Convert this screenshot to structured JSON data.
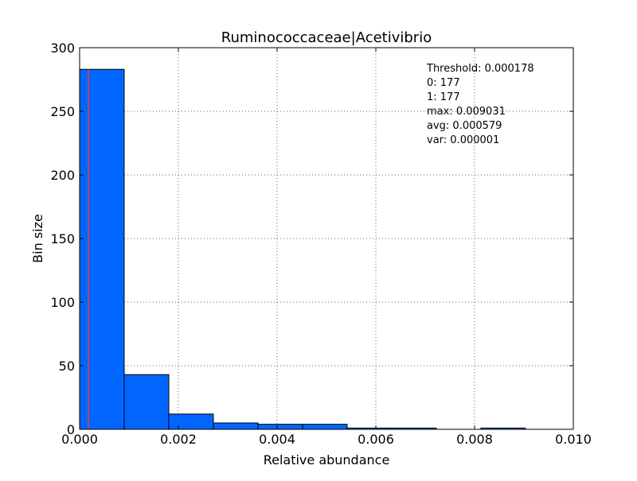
{
  "chart_data": {
    "type": "bar",
    "title": "Ruminococcaceae|Acetivibrio",
    "xlabel": "Relative abundance",
    "ylabel": "Bin size",
    "xlim": [
      0.0,
      0.01
    ],
    "ylim": [
      0,
      300
    ],
    "xticks": [
      "0.000",
      "0.002",
      "0.004",
      "0.006",
      "0.008",
      "0.010"
    ],
    "yticks": [
      "0",
      "50",
      "100",
      "150",
      "200",
      "250",
      "300"
    ],
    "grid": true,
    "bins": [
      {
        "start": 0.0,
        "end": 0.000903,
        "count": 283
      },
      {
        "start": 0.000903,
        "end": 0.001806,
        "count": 43
      },
      {
        "start": 0.001806,
        "end": 0.002709,
        "count": 12
      },
      {
        "start": 0.002709,
        "end": 0.003612,
        "count": 5
      },
      {
        "start": 0.003612,
        "end": 0.004516,
        "count": 4
      },
      {
        "start": 0.004516,
        "end": 0.005419,
        "count": 4
      },
      {
        "start": 0.005419,
        "end": 0.006322,
        "count": 1
      },
      {
        "start": 0.006322,
        "end": 0.007225,
        "count": 1
      },
      {
        "start": 0.007225,
        "end": 0.008128,
        "count": 0
      },
      {
        "start": 0.008128,
        "end": 0.009031,
        "count": 1
      }
    ],
    "threshold_line": 0.000178,
    "bar_color": "#0066ff",
    "threshold_color": "#ff3333",
    "annotations": [
      "Threshold: 0.000178",
      "0: 177",
      "1: 177",
      "max: 0.009031",
      "avg: 0.000579",
      "var: 0.000001"
    ]
  }
}
